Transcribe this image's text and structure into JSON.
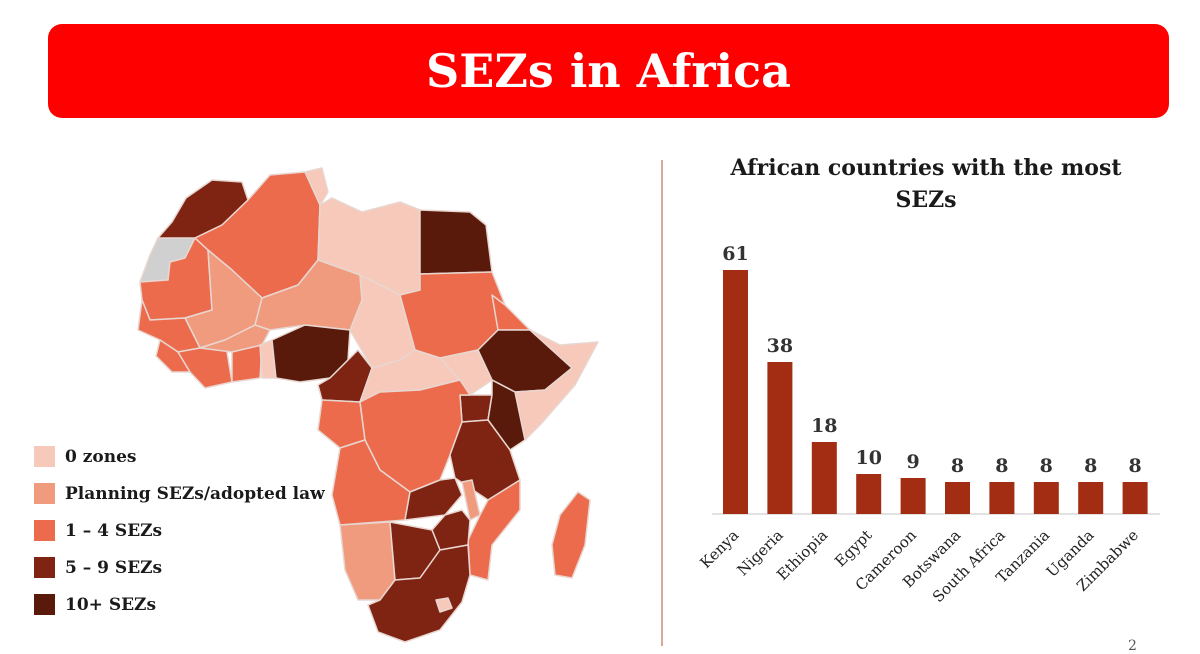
{
  "header": {
    "title": "SEZs in Africa"
  },
  "legend": {
    "items": [
      {
        "label": "0 zones",
        "color": "#f7c9bb"
      },
      {
        "label": "Planning SEZs/adopted law",
        "color": "#f09a7e"
      },
      {
        "label": "1 – 4 SEZs",
        "color": "#ec6b4c"
      },
      {
        "label": "5 – 9 SEZs",
        "color": "#7f2312"
      },
      {
        "label": "10+ SEZs",
        "color": "#5a1a0b"
      }
    ]
  },
  "map": {
    "no_data_color": "#d0d0d0",
    "border_color": "#e8d6d0"
  },
  "chart_data": {
    "type": "bar",
    "title": "African countries with the most SEZs",
    "categories": [
      "Kenya",
      "Nigeria",
      "Ethiopia",
      "Egypt",
      "Cameroon",
      "Botswana",
      "South Africa",
      "Tanzania",
      "Uganda",
      "Zimbabwe"
    ],
    "values": [
      61,
      38,
      18,
      10,
      9,
      8,
      8,
      8,
      8,
      8
    ],
    "bar_color": "#a22d12",
    "ylim": [
      0,
      61
    ],
    "grid": false,
    "data_labels": true
  },
  "footer": {
    "page_number": "2"
  }
}
